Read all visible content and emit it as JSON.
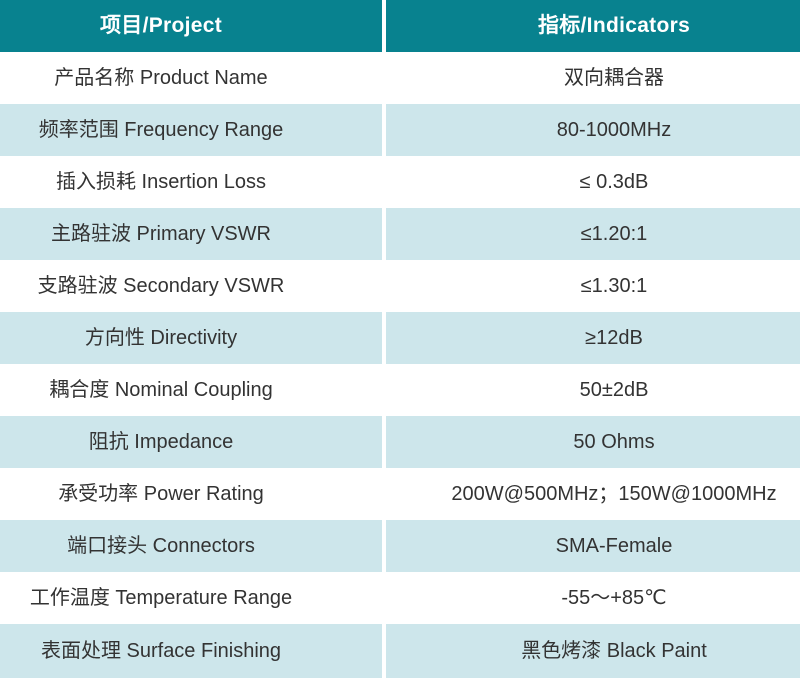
{
  "table": {
    "colors": {
      "header_bg": "#08828f",
      "header_text": "#ffffff",
      "alt_row_bg": "#cde6eb",
      "row_bg": "#ffffff",
      "body_text": "#333333"
    },
    "header": {
      "project_label": "项目/Project",
      "indicator_label": "指标/Indicators"
    },
    "rows": [
      {
        "project": "产品名称 Product Name",
        "indicator": "双向耦合器"
      },
      {
        "project": "频率范围 Frequency Range",
        "indicator": "80-1000MHz"
      },
      {
        "project": "插入损耗 Insertion Loss",
        "indicator": "≤ 0.3dB"
      },
      {
        "project": "主路驻波 Primary VSWR",
        "indicator": "≤1.20:1"
      },
      {
        "project": "支路驻波 Secondary VSWR",
        "indicator": "≤1.30:1"
      },
      {
        "project": "方向性 Directivity",
        "indicator": "≥12dB"
      },
      {
        "project": "耦合度 Nominal Coupling",
        "indicator": "50±2dB"
      },
      {
        "project": "阻抗 Impedance",
        "indicator": "50 Ohms"
      },
      {
        "project": "承受功率 Power Rating",
        "indicator": "200W@500MHz；150W@1000MHz"
      },
      {
        "project": "端口接头 Connectors",
        "indicator": "SMA-Female"
      },
      {
        "project": "工作温度 Temperature Range",
        "indicator": "-55～+85℃"
      },
      {
        "project": "表面处理 Surface Finishing",
        "indicator": "黑色烤漆 Black Paint"
      }
    ]
  }
}
